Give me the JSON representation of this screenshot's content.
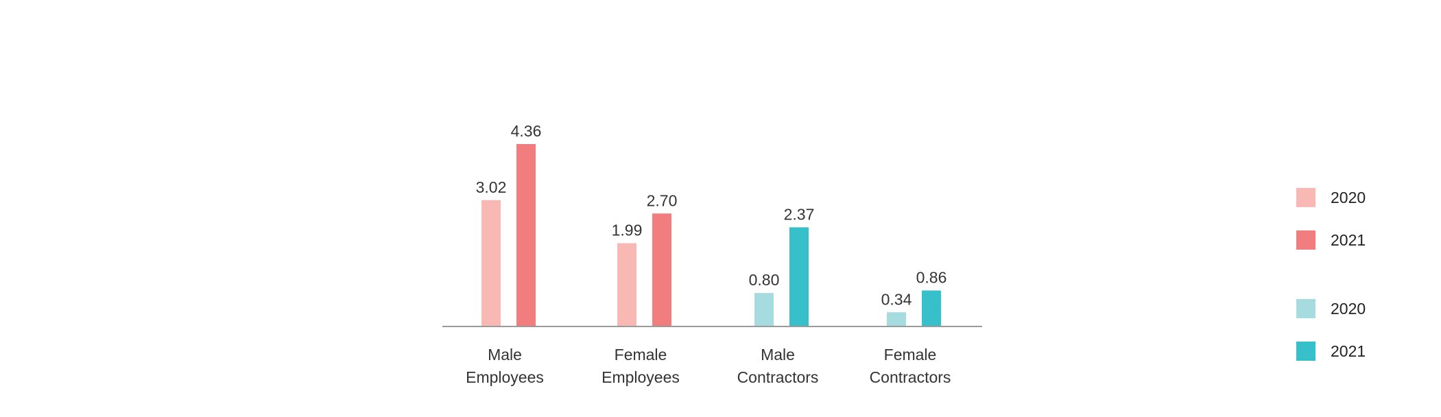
{
  "chart_data": {
    "type": "bar",
    "title": "",
    "xlabel": "",
    "ylabel": "",
    "categories": [
      [
        "Male",
        "Employees"
      ],
      [
        "Female",
        "Employees"
      ],
      [
        "Male",
        "Contractors"
      ],
      [
        "Female",
        "Contractors"
      ]
    ],
    "series": [
      {
        "name": "2020",
        "values": [
          3.02,
          1.99,
          0.8,
          0.34
        ],
        "labels": [
          "3.02",
          "1.99",
          "0.80",
          "0.34"
        ],
        "colors": [
          "#f8b9b4",
          "#f8b9b4",
          "#a6dcdf",
          "#a6dcdf"
        ]
      },
      {
        "name": "2021",
        "values": [
          4.36,
          2.7,
          2.37,
          0.86
        ],
        "labels": [
          "4.36",
          "2.70",
          "2.37",
          "0.86"
        ],
        "colors": [
          "#f27d7f",
          "#f27d7f",
          "#37bfca",
          "#37bfca"
        ]
      }
    ],
    "ylim": [
      0,
      4.36
    ],
    "grid": false,
    "legend_position": "right"
  },
  "legend": {
    "items": [
      {
        "label": "2020",
        "color": "#f8b9b4"
      },
      {
        "label": "2021",
        "color": "#f27d7f"
      },
      {
        "label": "2020",
        "color": "#a6dcdf"
      },
      {
        "label": "2021",
        "color": "#37bfca"
      }
    ]
  },
  "colors": {
    "axis": "#9a9a9a",
    "text": "#333333"
  }
}
